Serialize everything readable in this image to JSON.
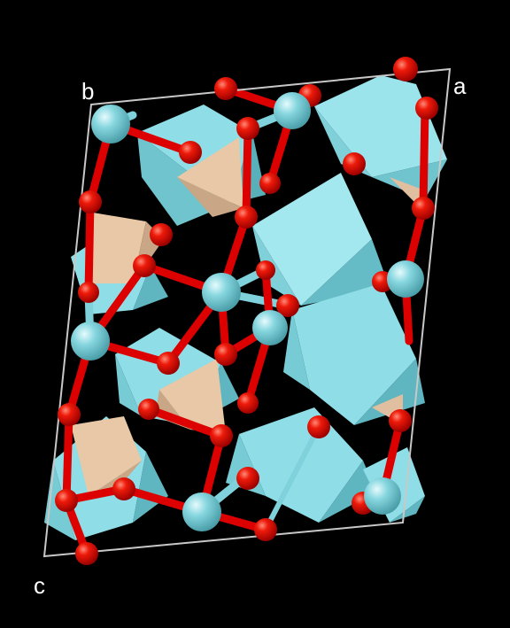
{
  "axes": {
    "a": "a",
    "b": "b",
    "c": "c"
  },
  "colors": {
    "background": "#000000",
    "cell_edge": "#c8c8c8",
    "oxygen": "#e80000",
    "oxygen_highlight": "#ff6a5a",
    "cation": "#7fd2dc",
    "cation_highlight": "#d8f6fa",
    "octahedron_light": "#9ce4ec",
    "octahedron_mid": "#79cfd8",
    "octahedron_dark": "#58b3bd",
    "tetrahedron_light": "#f0d4b8",
    "tetrahedron_mid": "#dcb898",
    "tetrahedron_dark": "#b8967a",
    "bond_oxygen": "#dd0000",
    "bond_cation": "#7fd2dc"
  }
}
